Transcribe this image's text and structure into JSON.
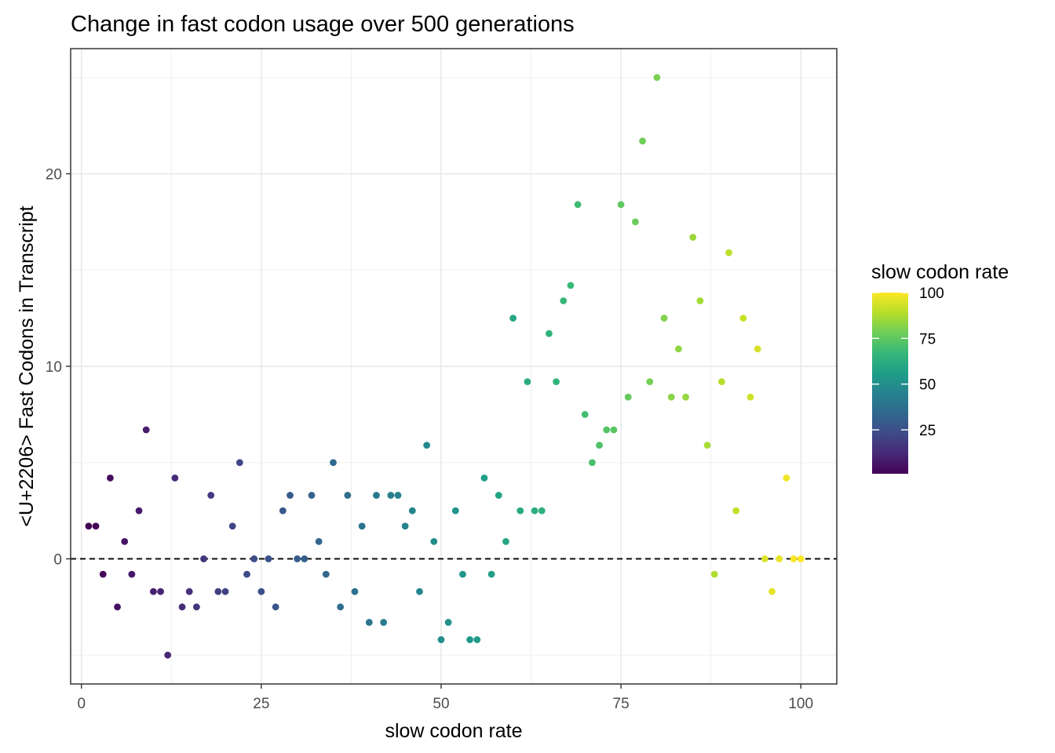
{
  "chart_data": {
    "type": "scatter",
    "title": "Change in fast codon usage over 500 generations",
    "xlabel": "slow codon rate",
    "ylabel": "<U+2206> Fast Codons in Transcript",
    "xlim": [
      -1.5,
      105
    ],
    "ylim": [
      -6.5,
      26.5
    ],
    "x_ticks": [
      0,
      25,
      50,
      75,
      100
    ],
    "x_tick_labels": [
      "0",
      "25",
      "50",
      "75",
      "100"
    ],
    "y_ticks": [
      0,
      10,
      20
    ],
    "y_tick_labels": [
      "0",
      "10",
      "20"
    ],
    "x_minor": [
      12.5,
      37.5,
      62.5,
      87.5
    ],
    "y_minor": [
      -5,
      5,
      15,
      25
    ],
    "grid": true,
    "reference_line": {
      "y": 0,
      "style": "dashed"
    },
    "color_scale": {
      "name": "viridis",
      "title": "slow codon rate",
      "min": 1,
      "max": 100,
      "ticks": [
        25,
        50,
        75,
        100
      ],
      "tick_labels": [
        "25",
        "50",
        "75",
        "100"
      ],
      "stops": [
        "#440154",
        "#482878",
        "#3e4a89",
        "#31688e",
        "#26828e",
        "#1f9e89",
        "#35b779",
        "#6ece58",
        "#b5de2b",
        "#fde725"
      ]
    },
    "legend_position": "right",
    "points": {
      "x": [
        1,
        2,
        3,
        4,
        5,
        6,
        7,
        8,
        9,
        10,
        11,
        12,
        13,
        14,
        15,
        16,
        17,
        18,
        19,
        20,
        21,
        22,
        23,
        24,
        25,
        26,
        27,
        28,
        29,
        30,
        31,
        32,
        33,
        34,
        35,
        36,
        37,
        38,
        39,
        40,
        41,
        42,
        43,
        44,
        45,
        46,
        47,
        48,
        49,
        50,
        51,
        52,
        53,
        54,
        55,
        56,
        57,
        58,
        59,
        60,
        61,
        62,
        63,
        64,
        65,
        66,
        67,
        68,
        69,
        70,
        71,
        72,
        73,
        74,
        75,
        76,
        77,
        78,
        79,
        80,
        81,
        82,
        83,
        84,
        85,
        86,
        87,
        88,
        89,
        90,
        91,
        92,
        93,
        94,
        95,
        96,
        97,
        98,
        99,
        100
      ],
      "y": [
        1.7,
        1.7,
        -0.8,
        4.2,
        -2.5,
        0.9,
        -0.8,
        2.5,
        6.7,
        -1.7,
        -1.7,
        -5,
        4.2,
        -2.5,
        -1.7,
        -2.5,
        0,
        3.3,
        -1.7,
        -1.7,
        1.7,
        5,
        -0.8,
        0,
        -1.7,
        0,
        -2.5,
        2.5,
        3.3,
        0,
        0,
        3.3,
        0.9,
        -0.8,
        5,
        -2.5,
        3.3,
        -1.7,
        1.7,
        -3.3,
        3.3,
        -3.3,
        3.3,
        3.3,
        1.7,
        2.5,
        -1.7,
        5.9,
        0.9,
        -4.2,
        -3.3,
        2.5,
        -0.8,
        -4.2,
        -4.2,
        4.2,
        -0.8,
        3.3,
        0.9,
        12.5,
        2.5,
        9.2,
        2.5,
        2.5,
        11.7,
        9.2,
        13.4,
        14.2,
        18.4,
        7.5,
        5,
        5.9,
        6.7,
        6.7,
        18.4,
        8.4,
        17.5,
        21.7,
        9.2,
        25,
        12.5,
        8.4,
        10.9,
        8.4,
        16.7,
        13.4,
        5.9,
        -0.8,
        9.2,
        15.9,
        2.5,
        12.5,
        8.4,
        10.9,
        0,
        -1.7,
        0,
        4.2,
        0,
        0
      ]
    }
  }
}
